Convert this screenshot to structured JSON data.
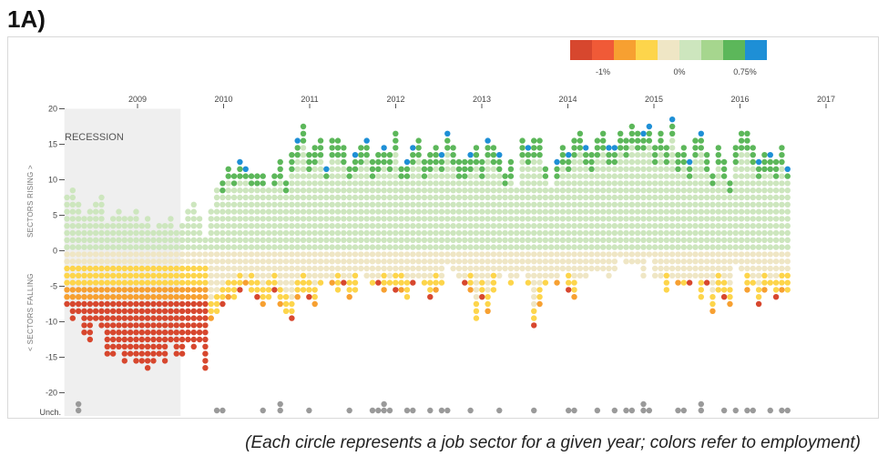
{
  "panel_label": "1A)",
  "caption": "(Each circle represents a job sector for a given year; colors refer to employment)",
  "chart_data": {
    "type": "dot-column",
    "title": "",
    "recession_label": "RECESSION",
    "recession_range": [
      2008.15,
      2009.5
    ],
    "x_ticks": [
      "2009",
      "2010",
      "2011",
      "2012",
      "2013",
      "2014",
      "2015",
      "2016",
      "2017"
    ],
    "x_range": [
      2008.2,
      2017.2
    ],
    "ylim": [
      -21.5,
      20
    ],
    "y_ticks": [
      "20",
      "15",
      "10",
      "5",
      "0",
      "-5",
      "-10",
      "-15",
      "-20"
    ],
    "y_ticks_values": [
      20,
      15,
      10,
      5,
      0,
      -5,
      -10,
      -15,
      -20
    ],
    "unchanged_label": "Unch.",
    "ylabel_rising": "SECTORS RISING >",
    "ylabel_falling": "< SECTORS FALLING",
    "legend": {
      "labels": [
        "-1%",
        "0%",
        "0.75%"
      ],
      "colors": [
        "#d7472e",
        "#f05a37",
        "#f7a031",
        "#fdd54b",
        "#efe6c5",
        "#cde6be",
        "#a6d68e",
        "#5cb75a",
        "#1e8fd6"
      ]
    },
    "colors": {
      "strong_decline": "#d7472e",
      "decline": "#f7a031",
      "mild_decline": "#fdd54b",
      "slight_decline": "#efe6c5",
      "slight_rise": "#cde6be",
      "rise": "#5cb75a",
      "strong_rise": "#1e8fd6",
      "unchanged": "#9a9a9a",
      "recession_band": "#efefef"
    },
    "rising": [
      8,
      9,
      7,
      5,
      6,
      7,
      8,
      4,
      5,
      6,
      5,
      5,
      6,
      4,
      5,
      3,
      4,
      4,
      5,
      3,
      4,
      6,
      7,
      5,
      2,
      6,
      9,
      10,
      12,
      11,
      13,
      12,
      11,
      11,
      11,
      9,
      11,
      13,
      10,
      14,
      16,
      18,
      14,
      15,
      16,
      12,
      16,
      16,
      15,
      12,
      14,
      15,
      16,
      13,
      14,
      15,
      14,
      17,
      12,
      13,
      15,
      16,
      13,
      14,
      15,
      14,
      17,
      15,
      13,
      13,
      14,
      15,
      13,
      16,
      15,
      14,
      11,
      13,
      9,
      16,
      15,
      16,
      16,
      12,
      9,
      13,
      15,
      14,
      16,
      17,
      15,
      14,
      16,
      17,
      15,
      15,
      17,
      16,
      18,
      17,
      17,
      18,
      15,
      17,
      15,
      19,
      14,
      15,
      13,
      16,
      17,
      14,
      11,
      15,
      13,
      10,
      15,
      17,
      17,
      15,
      13,
      14,
      14,
      13,
      15,
      12
    ],
    "falling": [
      8,
      10,
      9,
      12,
      13,
      10,
      11,
      15,
      15,
      14,
      16,
      15,
      16,
      16,
      17,
      16,
      15,
      16,
      13,
      15,
      15,
      13,
      14,
      13,
      17,
      10,
      9,
      8,
      7,
      7,
      6,
      5,
      6,
      7,
      8,
      7,
      6,
      8,
      9,
      10,
      7,
      6,
      7,
      8,
      5,
      4,
      5,
      6,
      5,
      7,
      6,
      3,
      4,
      5,
      5,
      6,
      5,
      6,
      6,
      7,
      5,
      4,
      5,
      7,
      6,
      5,
      2,
      3,
      4,
      5,
      6,
      10,
      7,
      9,
      6,
      4,
      3,
      5,
      4,
      3,
      5,
      11,
      8,
      5,
      4,
      5,
      3,
      6,
      7,
      4,
      4,
      3,
      3,
      3,
      4,
      3,
      1,
      2,
      2,
      2,
      4,
      1,
      4,
      4,
      6,
      4,
      5,
      5,
      5,
      4,
      7,
      5,
      9,
      6,
      7,
      8,
      2,
      3,
      6,
      5,
      8,
      6,
      5,
      7,
      6,
      6
    ],
    "unchanged": [
      0,
      0,
      2,
      0,
      0,
      0,
      0,
      0,
      0,
      0,
      0,
      0,
      0,
      0,
      0,
      0,
      0,
      0,
      0,
      0,
      0,
      0,
      0,
      0,
      0,
      0,
      1,
      1,
      0,
      0,
      0,
      0,
      0,
      0,
      1,
      0,
      0,
      2,
      0,
      0,
      0,
      0,
      1,
      0,
      0,
      0,
      0,
      0,
      0,
      1,
      0,
      0,
      0,
      1,
      1,
      2,
      1,
      0,
      0,
      1,
      1,
      0,
      0,
      1,
      0,
      1,
      1,
      0,
      0,
      0,
      1,
      0,
      0,
      0,
      0,
      1,
      0,
      0,
      0,
      0,
      0,
      1,
      0,
      0,
      0,
      0,
      0,
      1,
      1,
      0,
      0,
      0,
      1,
      0,
      0,
      1,
      0,
      1,
      1,
      0,
      2,
      1,
      0,
      0,
      0,
      0,
      1,
      1,
      0,
      0,
      2,
      0,
      0,
      0,
      1,
      0,
      1,
      0,
      1,
      1,
      0,
      0,
      1,
      0,
      1,
      1
    ]
  }
}
